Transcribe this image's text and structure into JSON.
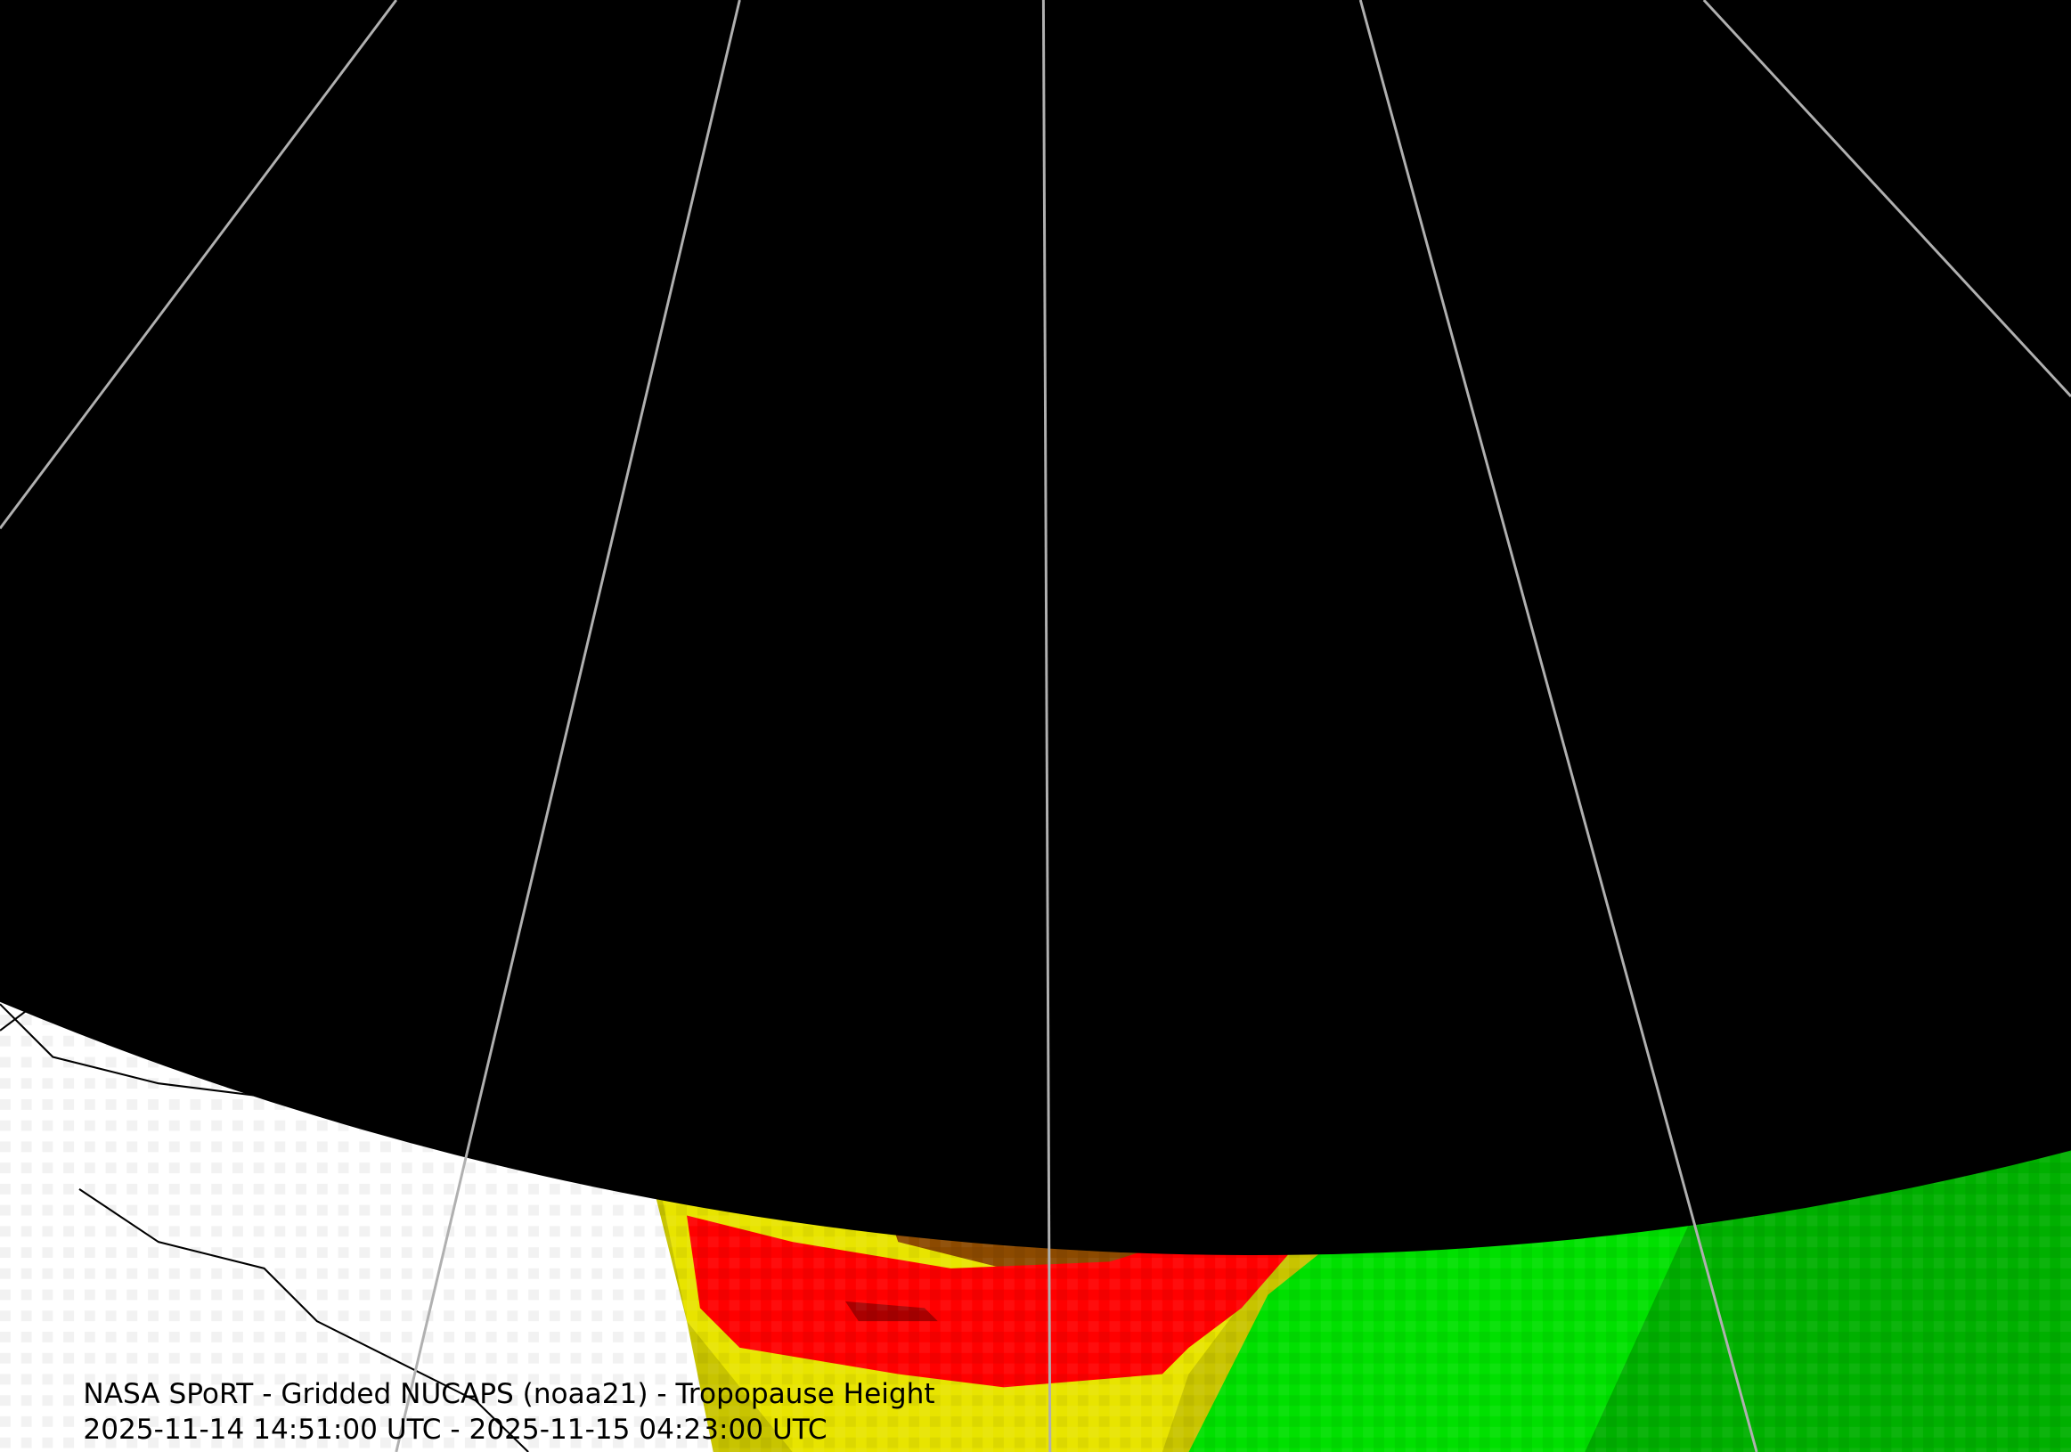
{
  "caption": {
    "title": "NASA SPoRT - Gridded NUCAPS (noaa21) - Tropopause Height",
    "time_range": "2025-11-14 14:51:00 UTC - 2025-11-15 04:23:00 UTC"
  }
}
